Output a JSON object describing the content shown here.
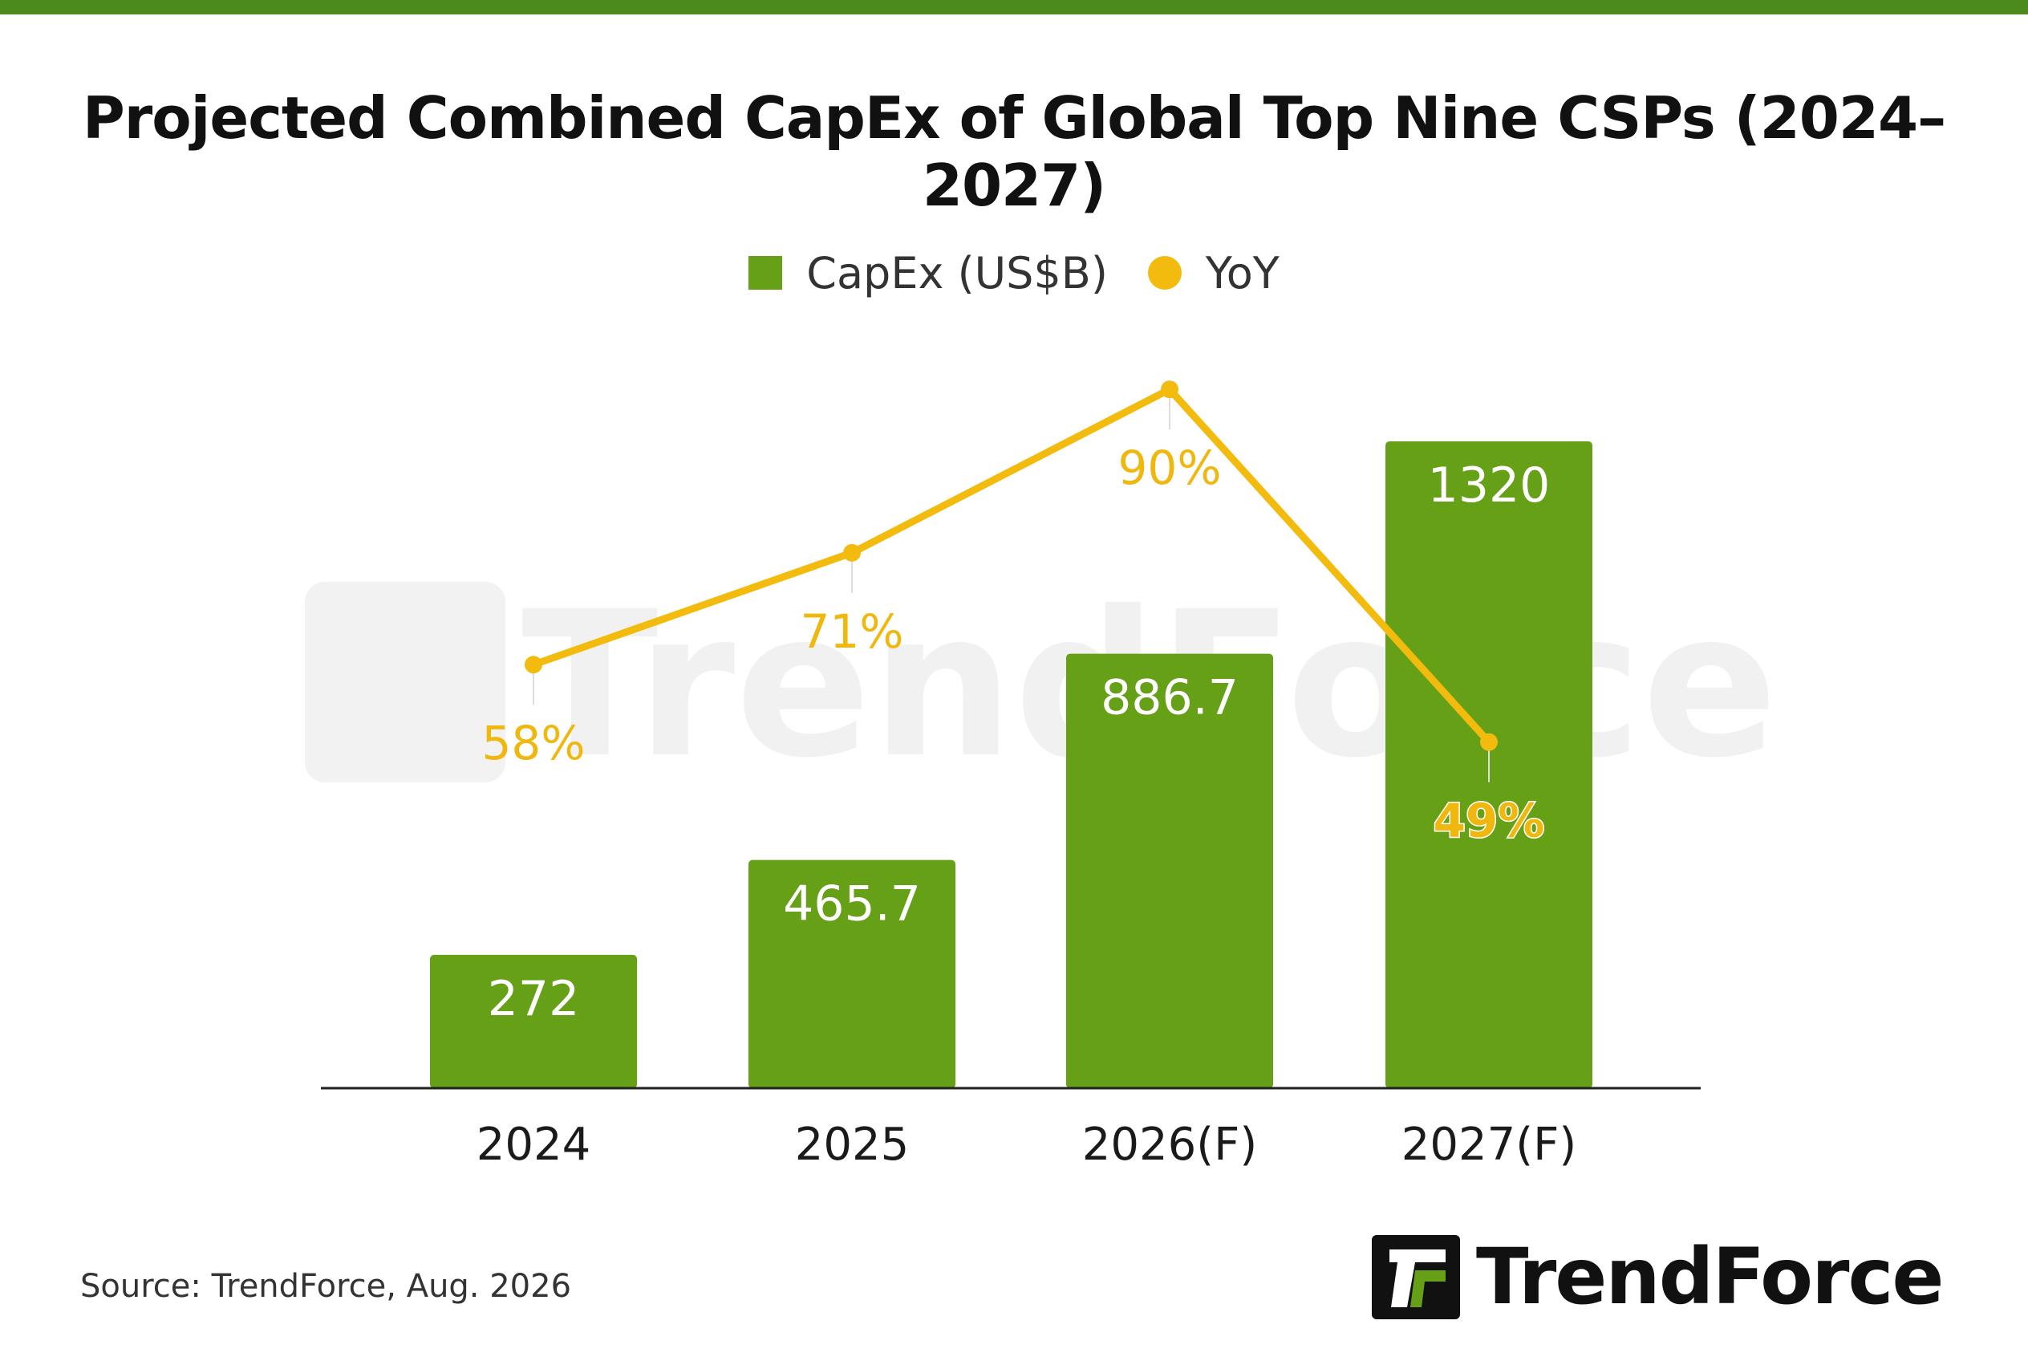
{
  "page": {
    "title": "Projected Combined CapEx of Global Top Nine CSPs (2024–2027)",
    "source": "Source: TrendForce, Aug. 2026",
    "brand": "TrendForce",
    "watermark": "TrendForce"
  },
  "colors": {
    "bar": "#65a017",
    "line": "#f2bb0d",
    "top_bar": "#4d8a1e",
    "axis": "#222222",
    "bar_label": "#ffffff",
    "yoy_label": "#f0b80e",
    "tick_label": "#1a1a1a"
  },
  "legend": [
    {
      "label": "CapEx (US$B)",
      "marker": "square",
      "color": "#65a017"
    },
    {
      "label": "YoY",
      "marker": "circle",
      "color": "#f2bb0d"
    }
  ],
  "chart_data": {
    "type": "bar",
    "categories": [
      "2024",
      "2025",
      "2026(F)",
      "2027(F)"
    ],
    "series": [
      {
        "name": "CapEx (US$B)",
        "type": "bar",
        "values": [
          272,
          465.7,
          886.7,
          1320
        ],
        "labels": [
          "272",
          "465.7",
          "886.7",
          "1320"
        ]
      },
      {
        "name": "YoY",
        "type": "line",
        "values": [
          58,
          71,
          90,
          49
        ],
        "labels": [
          "58%",
          "71%",
          "90%",
          "49%"
        ]
      }
    ],
    "title": "Projected Combined CapEx of Global Top Nine CSPs (2024–2027)",
    "grid": false,
    "legend_position": "top-center"
  }
}
